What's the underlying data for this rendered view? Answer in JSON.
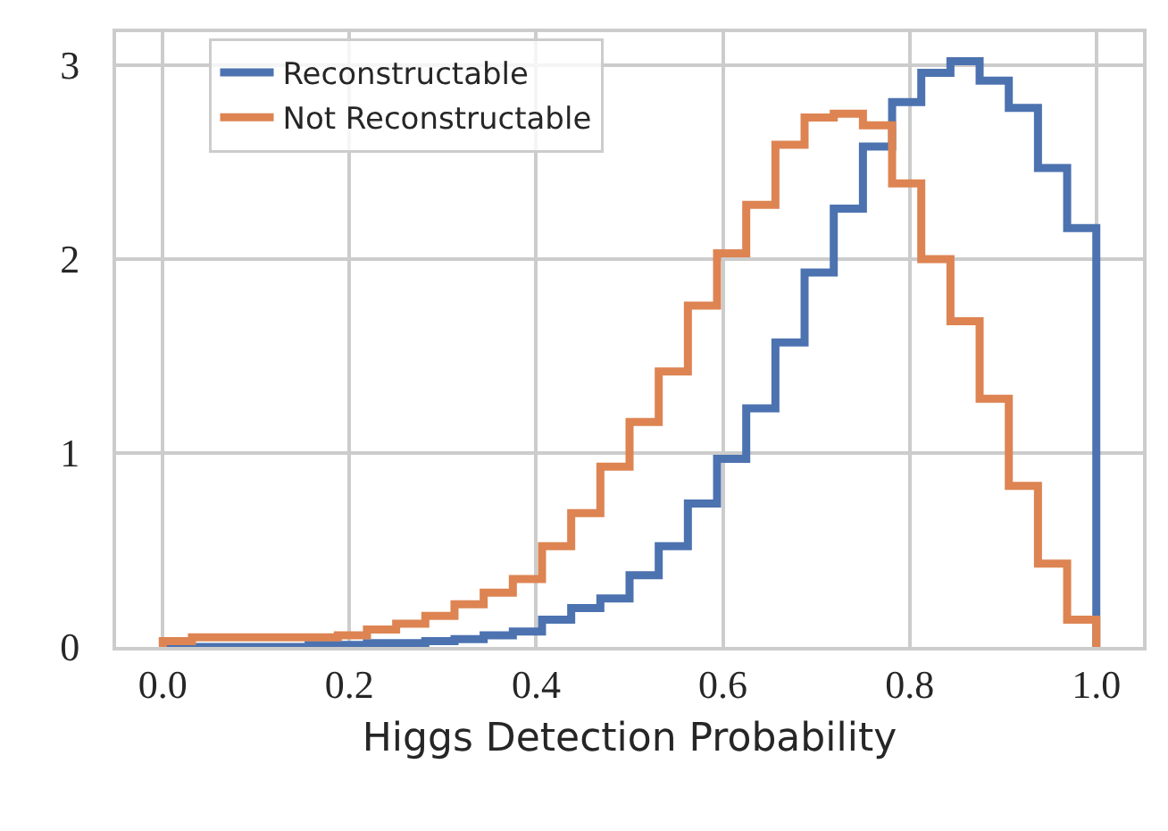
{
  "chart_data": {
    "type": "histogram",
    "xlabel": "Higgs Detection Probability",
    "bins": [
      0,
      0.03125,
      0.0625,
      0.09375,
      0.125,
      0.15625,
      0.1875,
      0.21875,
      0.25,
      0.28125,
      0.3125,
      0.34375,
      0.375,
      0.40625,
      0.4375,
      0.46875,
      0.5,
      0.53125,
      0.5625,
      0.59375,
      0.625,
      0.65625,
      0.6875,
      0.71875,
      0.75,
      0.78125,
      0.8125,
      0.84375,
      0.875,
      0.90625,
      0.9375,
      0.96875,
      1
    ],
    "series": [
      {
        "name": "Reconstructable",
        "color": "#4c72b0",
        "values": [
          0,
          0,
          0,
          0,
          0,
          0.01,
          0.01,
          0.02,
          0.02,
          0.03,
          0.04,
          0.06,
          0.08,
          0.14,
          0.2,
          0.25,
          0.37,
          0.52,
          0.74,
          0.97,
          1.23,
          1.57,
          1.93,
          2.26,
          2.58,
          2.81,
          2.96,
          3.02,
          2.92,
          2.78,
          2.47,
          2.16
        ]
      },
      {
        "name": "Not Reconstructable",
        "color": "#dd8452",
        "values": [
          0.03,
          0.05,
          0.05,
          0.05,
          0.05,
          0.05,
          0.06,
          0.09,
          0.12,
          0.16,
          0.22,
          0.28,
          0.35,
          0.52,
          0.69,
          0.93,
          1.16,
          1.42,
          1.76,
          2.03,
          2.28,
          2.59,
          2.73,
          2.75,
          2.69,
          2.39,
          2.0,
          1.68,
          1.28,
          0.83,
          0.43,
          0.14
        ]
      }
    ],
    "xlim": [
      -0.05,
      1.05
    ],
    "ylim": [
      0,
      3.17
    ],
    "xticks": [
      {
        "value": 0,
        "label": "0.0"
      },
      {
        "value": 0.2,
        "label": "0.2"
      },
      {
        "value": 0.4,
        "label": "0.4"
      },
      {
        "value": 0.6,
        "label": "0.6"
      },
      {
        "value": 0.8,
        "label": "0.8"
      },
      {
        "value": 1,
        "label": "1.0"
      }
    ],
    "yticks": [
      0,
      1,
      2,
      3
    ],
    "grid": true,
    "legend": "top left"
  }
}
